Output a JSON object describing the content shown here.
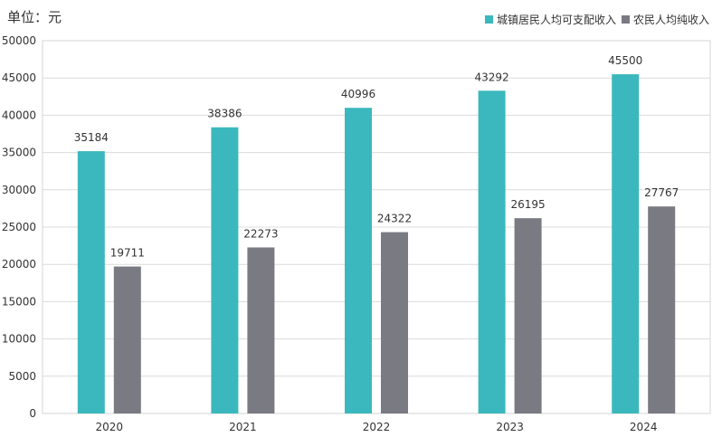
{
  "unit_label": "单位：元",
  "chart_data": {
    "type": "bar",
    "categories": [
      "2020",
      "2021",
      "2022",
      "2023",
      "2024"
    ],
    "series": [
      {
        "name": "城镇居民人均可支配收入",
        "values": [
          35184,
          38386,
          40996,
          43292,
          45500
        ],
        "color": "#3bb8bd"
      },
      {
        "name": "农民人均纯收入",
        "values": [
          19711,
          22273,
          24322,
          26195,
          27767
        ],
        "color": "#7a7a82"
      }
    ],
    "yticks": [
      0,
      5000,
      10000,
      15000,
      20000,
      25000,
      30000,
      35000,
      40000,
      45000,
      50000
    ],
    "ylim": [
      0,
      50000
    ],
    "grid": true,
    "legend": "top-right"
  }
}
